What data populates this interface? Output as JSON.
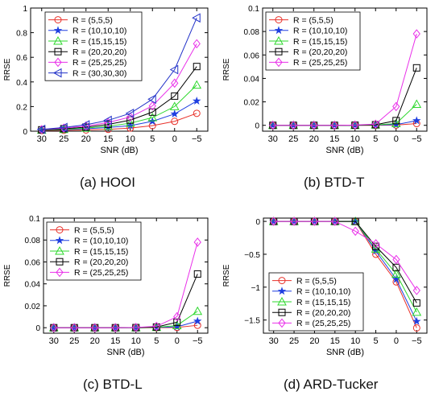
{
  "chart_data": [
    {
      "type": "line",
      "caption": "(a) HOOI",
      "xlabel": "SNR (dB)",
      "ylabel": "RRSE",
      "x": [
        30,
        25,
        20,
        15,
        10,
        5,
        0,
        -5
      ],
      "xticks": [
        "30",
        "25",
        "20",
        "15",
        "10",
        "5",
        "0",
        "−5"
      ],
      "ylim": [
        0,
        1
      ],
      "yticks": [
        "0",
        "0.2",
        "0.4",
        "0.6",
        "0.8",
        "1"
      ],
      "legend_position": "top-left",
      "grid": false,
      "series": [
        {
          "name": "R = (5,5,5)",
          "color": "#e8312a",
          "marker": "circle",
          "values": [
            0.005,
            0.007,
            0.01,
            0.015,
            0.025,
            0.045,
            0.08,
            0.145
          ]
        },
        {
          "name": "R = (10,10,10)",
          "color": "#1f3fe0",
          "marker": "star",
          "values": [
            0.007,
            0.012,
            0.02,
            0.03,
            0.045,
            0.08,
            0.14,
            0.245
          ]
        },
        {
          "name": "R = (15,15,15)",
          "color": "#2ed82e",
          "marker": "triangle-up",
          "values": [
            0.009,
            0.015,
            0.025,
            0.04,
            0.065,
            0.11,
            0.2,
            0.375
          ]
        },
        {
          "name": "R = (20,20,20)",
          "color": "#000000",
          "marker": "square",
          "values": [
            0.011,
            0.02,
            0.033,
            0.055,
            0.09,
            0.155,
            0.285,
            0.525
          ]
        },
        {
          "name": "R = (25,25,25)",
          "color": "#e92fe9",
          "marker": "diamond",
          "values": [
            0.013,
            0.025,
            0.042,
            0.07,
            0.115,
            0.205,
            0.39,
            0.71
          ]
        },
        {
          "name": "R = (30,30,30)",
          "color": "#2232c8",
          "marker": "triangle-left",
          "values": [
            0.015,
            0.03,
            0.052,
            0.088,
            0.145,
            0.26,
            0.5,
            0.92
          ]
        }
      ]
    },
    {
      "type": "line",
      "caption": "(b) BTD-T",
      "xlabel": "SNR (dB)",
      "ylabel": "RRSE",
      "x": [
        30,
        25,
        20,
        15,
        10,
        5,
        0,
        -5
      ],
      "xticks": [
        "30",
        "25",
        "20",
        "15",
        "10",
        "5",
        "0",
        "−5"
      ],
      "ylim": [
        -0.005,
        0.1
      ],
      "yticks": [
        "0",
        "0.02",
        "0.04",
        "0.06",
        "0.08",
        "0.1"
      ],
      "legend_position": "top-left",
      "grid": false,
      "series": [
        {
          "name": "R = (5,5,5)",
          "color": "#e8312a",
          "marker": "circle",
          "values": [
            0,
            0,
            0,
            0,
            0,
            0,
            0.0002,
            0.0015
          ]
        },
        {
          "name": "R = (10,10,10)",
          "color": "#1f3fe0",
          "marker": "star",
          "values": [
            0,
            0,
            0,
            0,
            0,
            0.0002,
            0.0006,
            0.004
          ]
        },
        {
          "name": "R = (15,15,15)",
          "color": "#2ed82e",
          "marker": "triangle-up",
          "values": [
            0,
            0,
            0,
            0,
            0,
            0.0003,
            0.0015,
            0.018
          ]
        },
        {
          "name": "R = (20,20,20)",
          "color": "#000000",
          "marker": "square",
          "values": [
            0,
            0,
            0,
            0,
            0.0001,
            0.0005,
            0.004,
            0.049
          ]
        },
        {
          "name": "R = (25,25,25)",
          "color": "#e92fe9",
          "marker": "diamond",
          "values": [
            0,
            0,
            0,
            0,
            0.0002,
            0.001,
            0.016,
            0.078
          ]
        }
      ]
    },
    {
      "type": "line",
      "caption": "(c) BTD-L",
      "xlabel": "SNR (dB)",
      "ylabel": "RRSE",
      "x": [
        30,
        25,
        20,
        15,
        10,
        5,
        0,
        -5
      ],
      "xticks": [
        "30",
        "25",
        "20",
        "15",
        "10",
        "5",
        "0",
        "−5"
      ],
      "ylim": [
        -0.005,
        0.1
      ],
      "yticks": [
        "0",
        "0.02",
        "0.04",
        "0.06",
        "0.08",
        "0.1"
      ],
      "legend_position": "top-left",
      "grid": false,
      "series": [
        {
          "name": "R = (5,5,5)",
          "color": "#e8312a",
          "marker": "circle",
          "values": [
            0,
            0,
            0,
            0,
            0,
            0,
            0.0002,
            0.0022
          ]
        },
        {
          "name": "R = (10,10,10)",
          "color": "#1f3fe0",
          "marker": "star",
          "values": [
            0,
            0,
            0,
            0,
            0,
            0.0002,
            0.0008,
            0.006
          ]
        },
        {
          "name": "R = (15,15,15)",
          "color": "#2ed82e",
          "marker": "triangle-up",
          "values": [
            0,
            0,
            0,
            0,
            0,
            0.0003,
            0.002,
            0.015
          ]
        },
        {
          "name": "R = (20,20,20)",
          "color": "#000000",
          "marker": "square",
          "values": [
            0,
            0,
            0,
            0,
            0.0001,
            0.0006,
            0.005,
            0.049
          ]
        },
        {
          "name": "R = (25,25,25)",
          "color": "#e92fe9",
          "marker": "diamond",
          "values": [
            0,
            0,
            0,
            0,
            0.0002,
            0.0012,
            0.01,
            0.078
          ]
        }
      ]
    },
    {
      "type": "line",
      "caption": "(d) ARD-Tucker",
      "xlabel": "SNR (dB)",
      "ylabel": "RRSE",
      "x": [
        30,
        25,
        20,
        15,
        10,
        5,
        0,
        -5
      ],
      "xticks": [
        "30",
        "25",
        "20",
        "15",
        "10",
        "5",
        "0",
        "−5"
      ],
      "ylim": [
        -1.7,
        0.05
      ],
      "yticks": [
        "0",
        "−0.5",
        "−1",
        "−1.5"
      ],
      "ytick_values": [
        0,
        -0.5,
        -1,
        -1.5
      ],
      "legend_position": "bottom-left",
      "grid": false,
      "series": [
        {
          "name": "R = (5,5,5)",
          "color": "#e8312a",
          "marker": "circle",
          "values": [
            0,
            0,
            0,
            0,
            0,
            -0.5,
            -0.92,
            -1.62
          ]
        },
        {
          "name": "R = (10,10,10)",
          "color": "#1f3fe0",
          "marker": "star",
          "values": [
            0,
            0,
            0,
            0,
            0,
            -0.45,
            -0.88,
            -1.52
          ]
        },
        {
          "name": "R = (15,15,15)",
          "color": "#2ed82e",
          "marker": "triangle-up",
          "values": [
            0,
            0,
            0,
            0,
            0,
            -0.42,
            -0.8,
            -1.38
          ]
        },
        {
          "name": "R = (20,20,20)",
          "color": "#000000",
          "marker": "square",
          "values": [
            0,
            0,
            0,
            0,
            0,
            -0.38,
            -0.7,
            -1.24
          ]
        },
        {
          "name": "R = (25,25,25)",
          "color": "#e92fe9",
          "marker": "diamond",
          "values": [
            0,
            0,
            0,
            0,
            -0.15,
            -0.34,
            -0.58,
            -1.05
          ]
        }
      ]
    }
  ]
}
